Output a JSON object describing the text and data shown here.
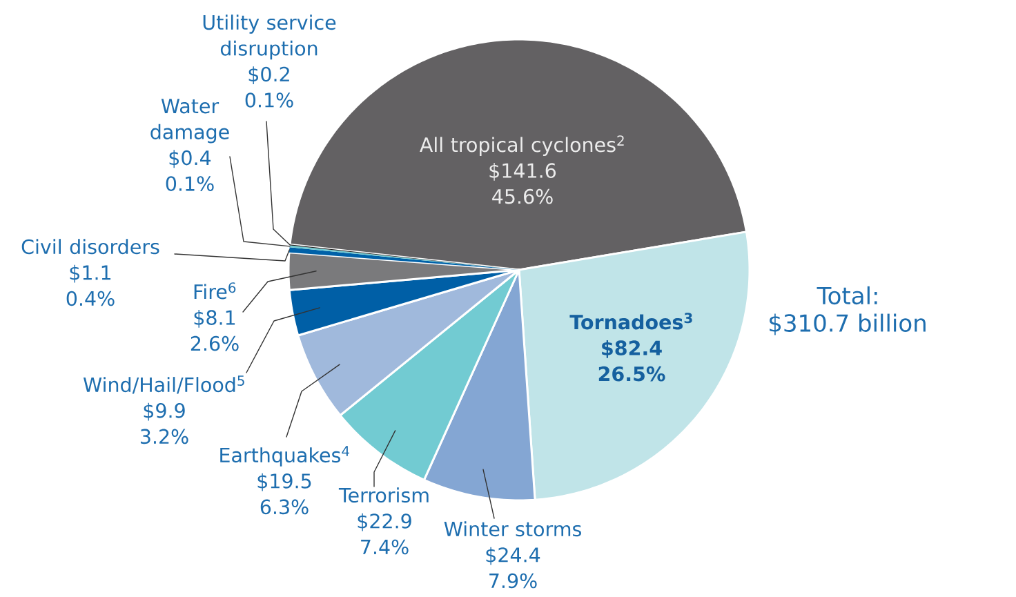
{
  "chart_data": {
    "type": "pie",
    "categories": [
      "All tropical cyclones$^{2}$",
      "Tornadoes$^{3}$",
      "Winter storms",
      "Terrorism",
      "Earthquakes$^{4}$",
      "Wind/Hail/Flood$^{5}$",
      "Fire$^{6}$",
      "Civil disorders",
      "Water damage",
      "Utility service disruption"
    ],
    "values": [
      141.6,
      82.4,
      24.4,
      22.9,
      19.5,
      9.9,
      8.1,
      1.1,
      0.4,
      0.2
    ],
    "value_labels": [
      "$141.6 45.6%",
      "$82.4 26.5%",
      "$24.4 7.9%",
      "$22.9 7.4%",
      "$19.5 6.3%",
      "$9.9 3.2%",
      "$8.1 2.6%",
      "$1.1 0.4%",
      "$0.4 0.1%",
      "$0.2 0.1%"
    ],
    "colors": [
      "#636163",
      "#c0e4e8",
      "#84a6d3",
      "#72cbd2",
      "#a0b9dc",
      "#005fa6",
      "#7a7a7c",
      "#0061a8",
      "#72cbd2",
      "#222222"
    ],
    "annotations": [
      "Total:",
      "$310.7 billion"
    ]
  }
}
